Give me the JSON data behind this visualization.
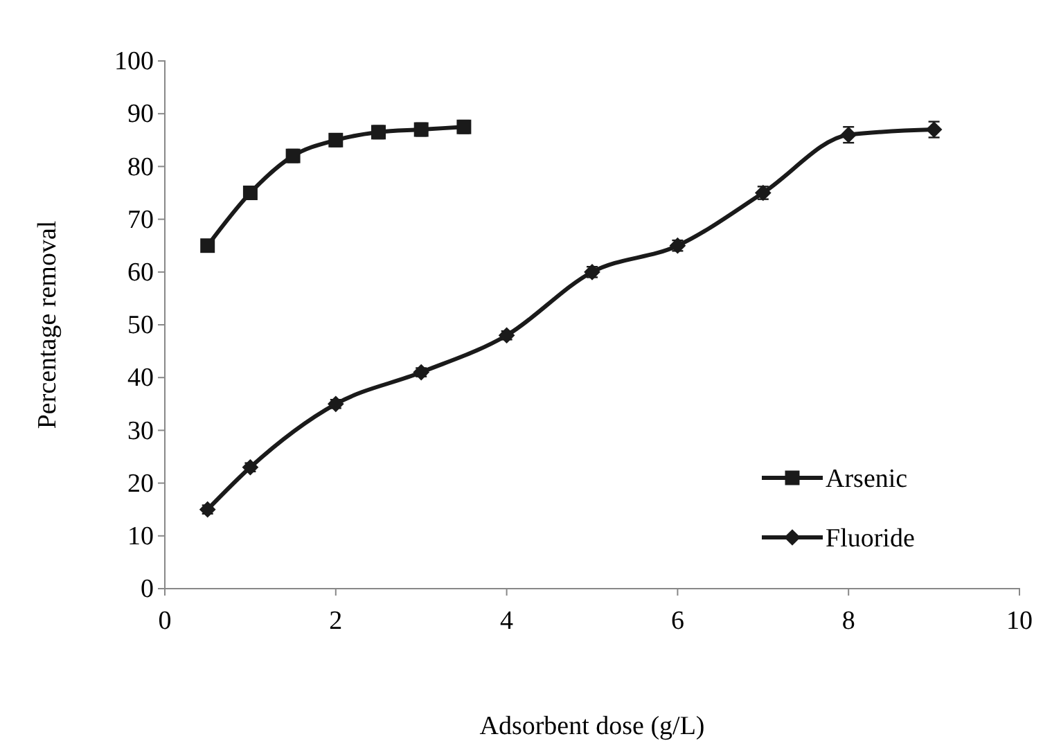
{
  "chart_data": {
    "type": "line",
    "xlabel": "Adsorbent dose (g/L)",
    "ylabel": "Percentage removal",
    "xlim": [
      0,
      10
    ],
    "xticks": [
      0,
      2,
      4,
      6,
      8,
      10
    ],
    "ylim": [
      0,
      100
    ],
    "yticks": [
      0,
      10,
      20,
      30,
      40,
      50,
      60,
      70,
      80,
      90,
      100
    ],
    "grid": false,
    "legend": "bottom right",
    "line_style": "solid",
    "series": [
      {
        "name": "Arsenic",
        "color": "#1a1a1a",
        "marker": "square",
        "x": [
          0.5,
          1,
          1.5,
          2,
          2.5,
          3,
          3.5
        ],
        "values": [
          65,
          75,
          82,
          85,
          86.5,
          87,
          87.5
        ],
        "errors": [
          null,
          null,
          1.2,
          1.2,
          1.2,
          1.2,
          1.2
        ]
      },
      {
        "name": "Fluoride",
        "color": "#1a1a1a",
        "marker": "diamond",
        "x": [
          0.5,
          1,
          2,
          3,
          4,
          5,
          6,
          7,
          8,
          9
        ],
        "values": [
          15,
          23,
          35,
          41,
          48,
          60,
          65,
          75,
          86,
          87
        ],
        "errors": [
          0.8,
          0.8,
          0.8,
          0.8,
          0.8,
          1,
          1,
          1.2,
          1.5,
          1.5
        ]
      }
    ]
  }
}
